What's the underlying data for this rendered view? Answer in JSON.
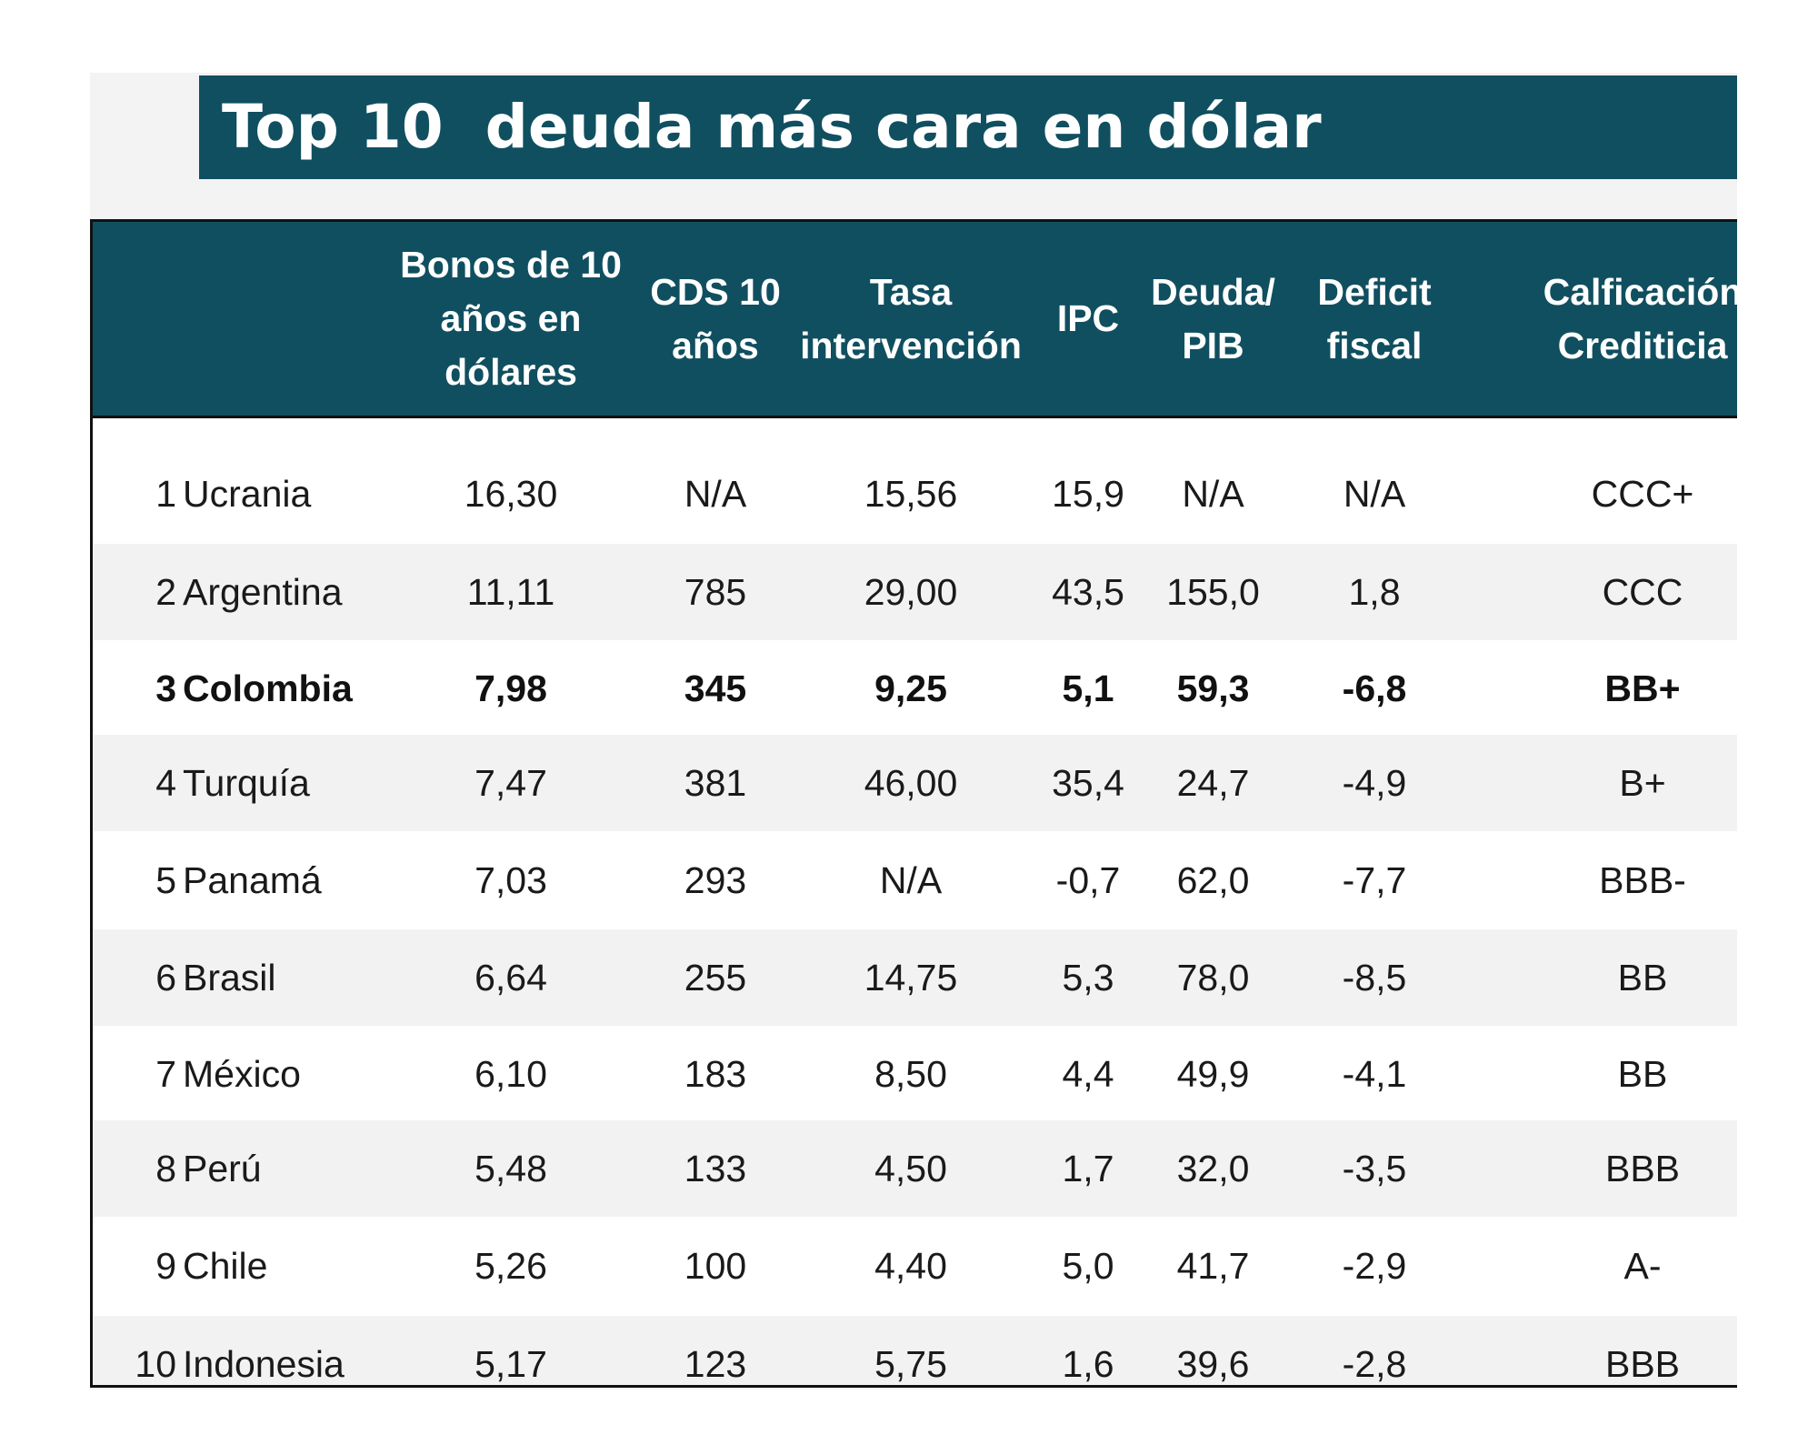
{
  "title": "Top 10  deuda más cara en dólar",
  "headers": {
    "rank": "",
    "country": "",
    "bonos": "Bonos de 10\naños en\ndólares",
    "cds": "CDS 10\naños",
    "tasa": "Tasa\nintervención",
    "ipc": "IPC",
    "deuda": "Deuda/\nPIB",
    "deficit": "Deficit\nfiscal",
    "calif": "Calficación\nCrediticia"
  },
  "rows": [
    {
      "rank": "1",
      "country": "Ucrania",
      "bonos": "16,30",
      "cds": "N/A",
      "tasa": "15,56",
      "ipc": "15,9",
      "deuda": "N/A",
      "deficit": "N/A",
      "calif": "CCC+",
      "bold": false
    },
    {
      "rank": "2",
      "country": "Argentina",
      "bonos": "11,11",
      "cds": "785",
      "tasa": "29,00",
      "ipc": "43,5",
      "deuda": "155,0",
      "deficit": "1,8",
      "calif": "CCC",
      "bold": false
    },
    {
      "rank": "3",
      "country": "Colombia",
      "bonos": "7,98",
      "cds": "345",
      "tasa": "9,25",
      "ipc": "5,1",
      "deuda": "59,3",
      "deficit": "-6,8",
      "calif": "BB+",
      "bold": true
    },
    {
      "rank": "4",
      "country": "Turquía",
      "bonos": "7,47",
      "cds": "381",
      "tasa": "46,00",
      "ipc": "35,4",
      "deuda": "24,7",
      "deficit": "-4,9",
      "calif": "B+",
      "bold": false
    },
    {
      "rank": "5",
      "country": "Panamá",
      "bonos": "7,03",
      "cds": "293",
      "tasa": "N/A",
      "ipc": "-0,7",
      "deuda": "62,0",
      "deficit": "-7,7",
      "calif": "BBB-",
      "bold": false
    },
    {
      "rank": "6",
      "country": "Brasil",
      "bonos": "6,64",
      "cds": "255",
      "tasa": "14,75",
      "ipc": "5,3",
      "deuda": "78,0",
      "deficit": "-8,5",
      "calif": "BB",
      "bold": false
    },
    {
      "rank": "7",
      "country": "México",
      "bonos": "6,10",
      "cds": "183",
      "tasa": "8,50",
      "ipc": "4,4",
      "deuda": "49,9",
      "deficit": "-4,1",
      "calif": "BB",
      "bold": false
    },
    {
      "rank": "8",
      "country": "Perú",
      "bonos": "5,48",
      "cds": "133",
      "tasa": "4,50",
      "ipc": "1,7",
      "deuda": "32,0",
      "deficit": "-3,5",
      "calif": "BBB",
      "bold": false
    },
    {
      "rank": "9",
      "country": "Chile",
      "bonos": "5,26",
      "cds": "100",
      "tasa": "4,40",
      "ipc": "5,0",
      "deuda": "41,7",
      "deficit": "-2,9",
      "calif": "A-",
      "bold": false
    },
    {
      "rank": "10",
      "country": "Indonesia",
      "bonos": "5,17",
      "cds": "123",
      "tasa": "5,75",
      "ipc": "1,6",
      "deuda": "39,6",
      "deficit": "-2,8",
      "calif": "BBB",
      "bold": false
    }
  ],
  "colors": {
    "header_bg": "#104f60",
    "header_text": "#ffffff",
    "row_shade": "#f2f2f2"
  }
}
